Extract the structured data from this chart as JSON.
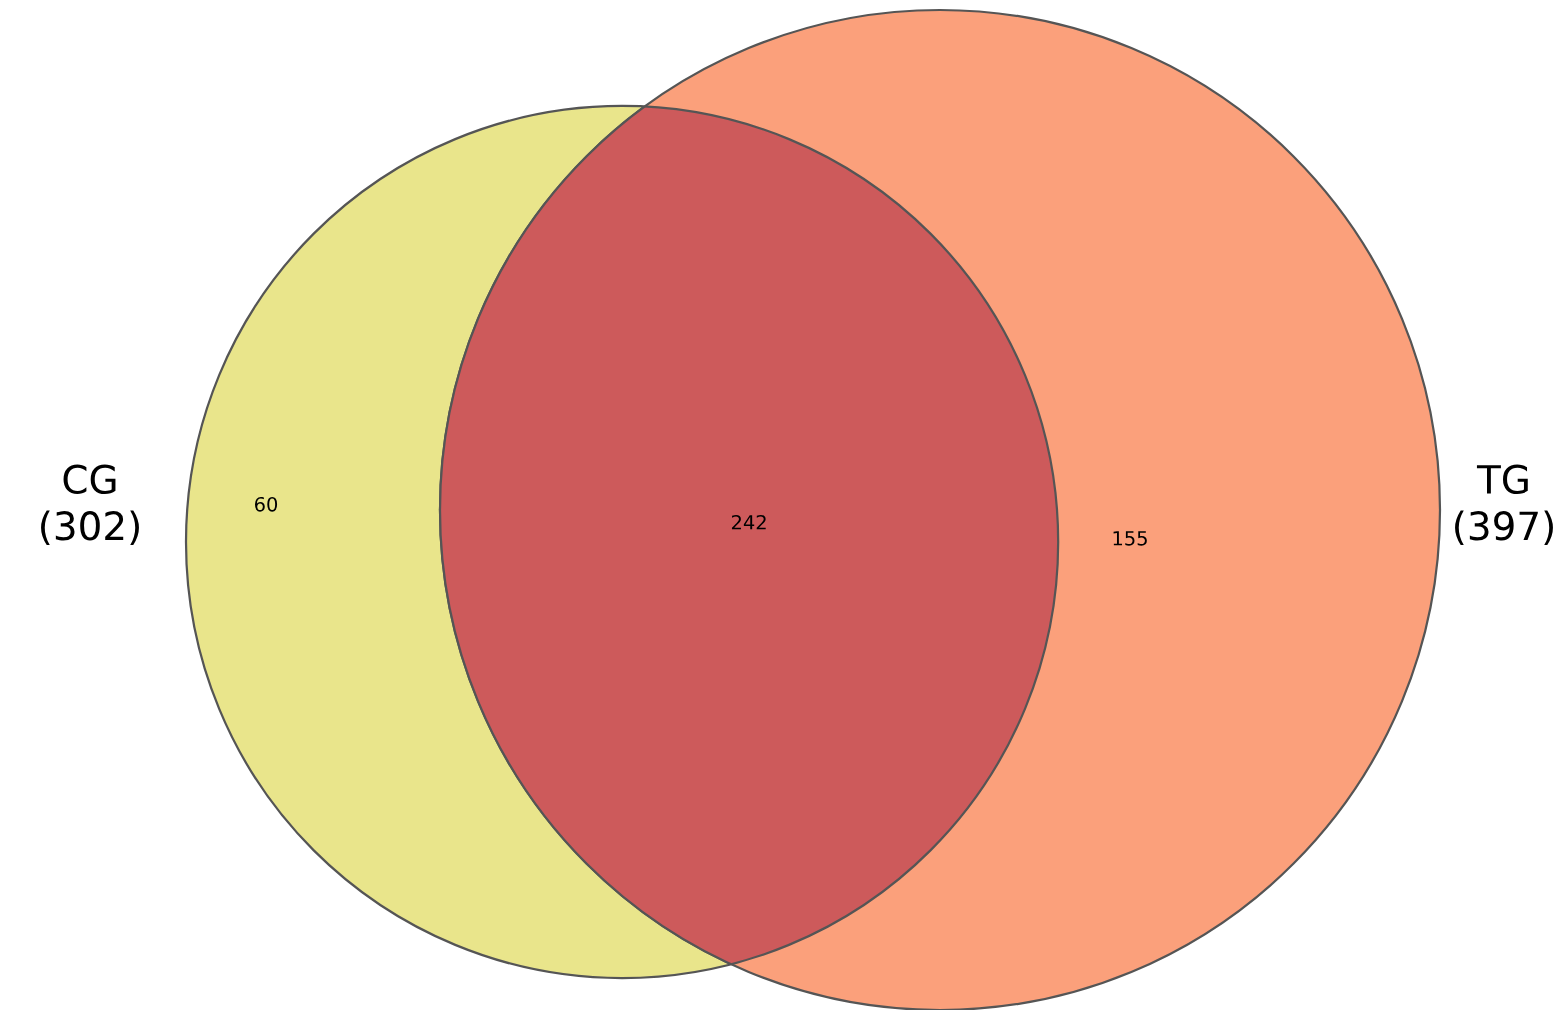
{
  "chart_data": {
    "type": "other",
    "categories": [
      null,
      null,
      null
    ],
    "values": [
      60,
      242,
      155
    ],
    "data_labels": true,
    "colors": [
      "#e9e58b",
      "#cd5a5b",
      "#fba07b"
    ],
    "annotations": [
      "CG\n(302)",
      "TG\n(397)"
    ]
  }
}
